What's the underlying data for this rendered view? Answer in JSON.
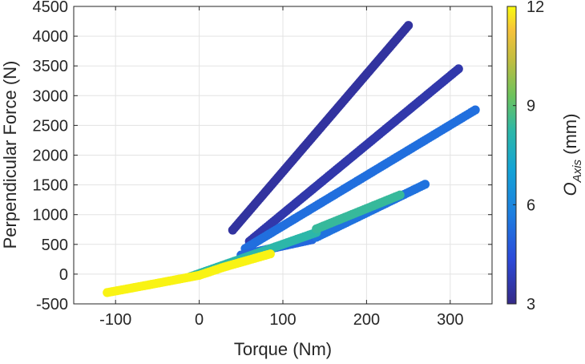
{
  "chart_data": {
    "type": "scatter",
    "title": "",
    "xlabel": "Torque (Nm)",
    "ylabel": "Perpendicular Force (N)",
    "xlim": [
      -150,
      350
    ],
    "ylim": [
      -500,
      4500
    ],
    "xticks": [
      -100,
      0,
      100,
      200,
      300
    ],
    "yticks": [
      -500,
      0,
      500,
      1000,
      1500,
      2000,
      2500,
      3000,
      3500,
      4000,
      4500
    ],
    "grid": true,
    "colorbar": {
      "label_main": "O",
      "label_sub": "Axis",
      "label_unit": " (mm)",
      "range": [
        3,
        12
      ],
      "ticks": [
        3,
        6,
        9,
        12
      ],
      "colormap": "parula"
    },
    "series": [
      {
        "o_axis": 3.4,
        "x": [
          40,
          250
        ],
        "y": [
          740,
          4180
        ]
      },
      {
        "o_axis": 3.6,
        "x": [
          60,
          310
        ],
        "y": [
          550,
          3450
        ]
      },
      {
        "o_axis": 5.3,
        "x": [
          55,
          330
        ],
        "y": [
          430,
          2760
        ]
      },
      {
        "o_axis": 5.1,
        "x": [
          50,
          135
        ],
        "y": [
          320,
          580
        ]
      },
      {
        "o_axis": 5.4,
        "x": [
          140,
          270
        ],
        "y": [
          620,
          1510
        ]
      },
      {
        "o_axis": 8.2,
        "x": [
          -10,
          140
        ],
        "y": [
          -40,
          700
        ]
      },
      {
        "o_axis": 8.4,
        "x": [
          140,
          240
        ],
        "y": [
          760,
          1330
        ]
      },
      {
        "o_axis": 11.9,
        "x": [
          -110,
          -60,
          0,
          30,
          60,
          85
        ],
        "y": [
          -310,
          -180,
          -20,
          120,
          240,
          340
        ]
      }
    ]
  }
}
